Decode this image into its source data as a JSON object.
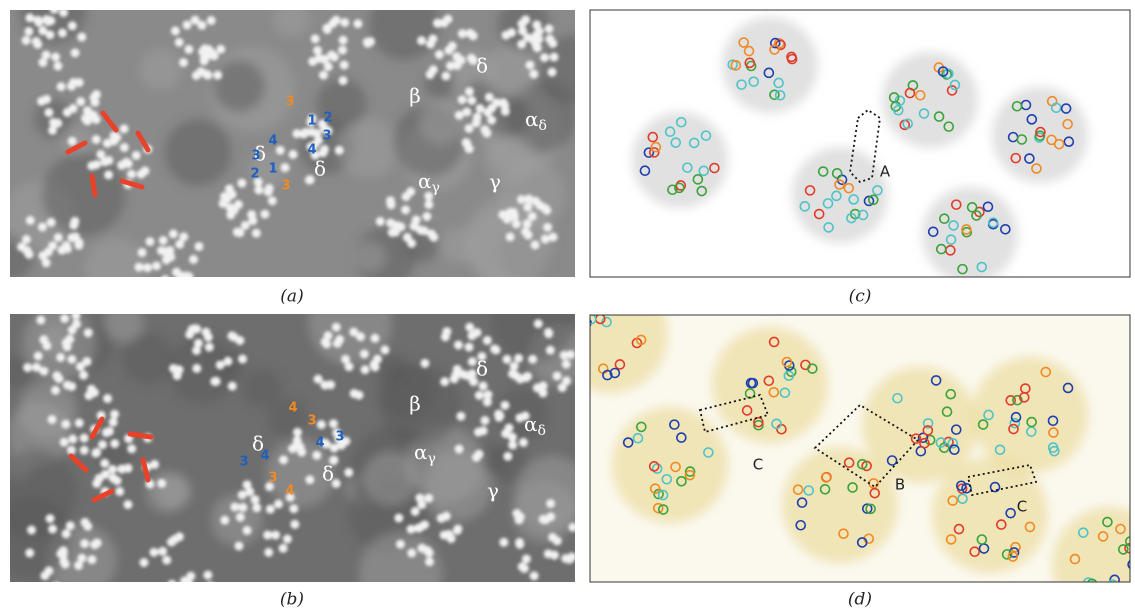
{
  "panels": [
    {
      "caption": "(a)",
      "labels": [
        "δ",
        "β",
        "δ",
        {
          "text": "α",
          "sub": "δ"
        },
        "δ",
        {
          "text": "α",
          "sub": "γ"
        },
        "γ"
      ],
      "numbers": [
        "3",
        "1",
        "2",
        "4",
        "3",
        "4",
        "3",
        "2",
        "1",
        "3"
      ]
    },
    {
      "caption": "(b)",
      "labels": [
        "δ",
        "β",
        "δ",
        {
          "text": "α",
          "sub": "δ"
        },
        "δ",
        {
          "text": "α",
          "sub": "γ"
        },
        "γ"
      ],
      "numbers": [
        "4",
        "3",
        "4",
        "3",
        "3",
        "4",
        "3",
        "4"
      ]
    },
    {
      "caption": "(c)",
      "labels": [
        "A"
      ]
    },
    {
      "caption": "(d)",
      "labels": [
        "C",
        "B",
        "C"
      ]
    }
  ]
}
